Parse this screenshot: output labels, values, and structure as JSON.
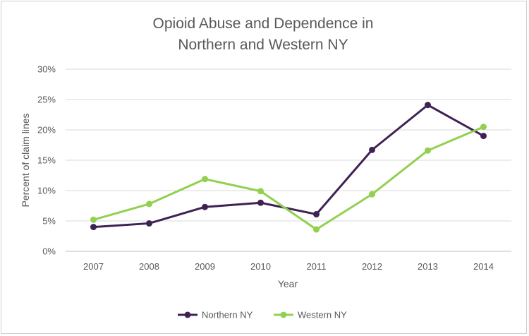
{
  "chart_data": {
    "type": "line",
    "title_lines": [
      "Opioid Abuse and Dependence  in",
      "Northern and Western NY"
    ],
    "xlabel": "Year",
    "ylabel": "Percent of claim lines",
    "categories": [
      "2007",
      "2008",
      "2009",
      "2010",
      "2011",
      "2012",
      "2013",
      "2014"
    ],
    "y_ticks": [
      "0%",
      "5%",
      "10%",
      "15%",
      "20%",
      "25%",
      "30%"
    ],
    "ylim": [
      0,
      30
    ],
    "grid": "horizontal",
    "legend_position": "bottom",
    "series": [
      {
        "name": "Northern NY",
        "color": "#3f2154",
        "values": [
          4.0,
          4.6,
          7.3,
          8.0,
          6.1,
          16.7,
          24.1,
          19.0
        ]
      },
      {
        "name": "Western NY",
        "color": "#92d050",
        "values": [
          5.2,
          7.8,
          11.9,
          9.9,
          3.6,
          9.4,
          16.6,
          20.5
        ]
      }
    ]
  }
}
